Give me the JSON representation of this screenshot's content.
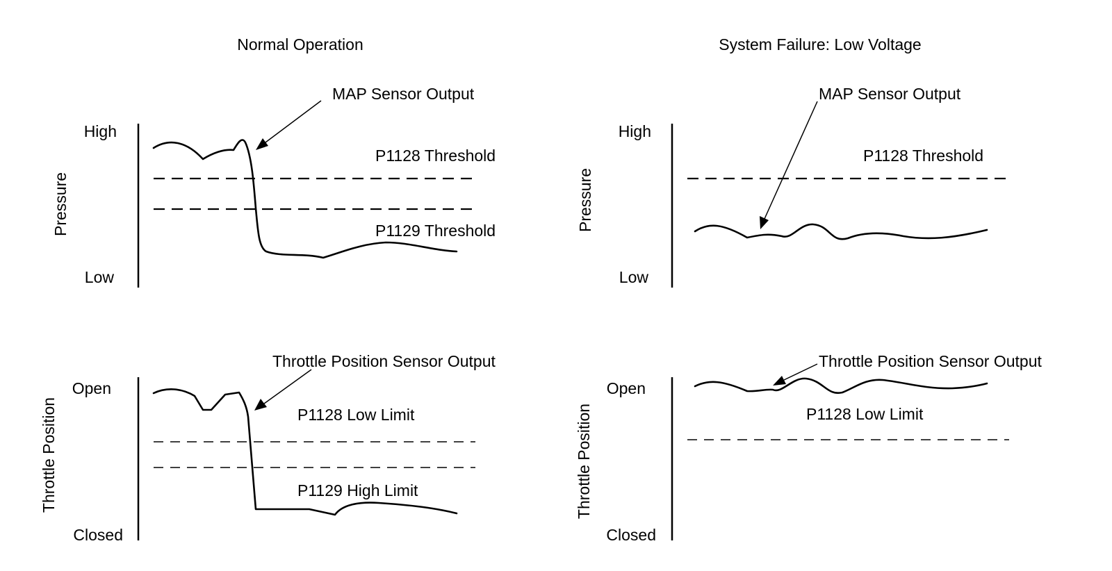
{
  "columns": {
    "left_title": "Normal Operation",
    "right_title": "System Failure: Low Voltage"
  },
  "pressure_panel": {
    "axis_label": "Pressure",
    "high_label": "High",
    "low_label": "Low",
    "signal_label": "MAP Sensor Output",
    "p1128_label": "P1128 Threshold",
    "p1129_label": "P1129 Threshold"
  },
  "throttle_panel": {
    "axis_label": "Throttle Position",
    "open_label": "Open",
    "closed_label": "Closed",
    "signal_label": "Throttle Position Sensor Output",
    "p1128_label": "P1128 Low Limit",
    "p1129_label": "P1129 High Limit"
  }
}
